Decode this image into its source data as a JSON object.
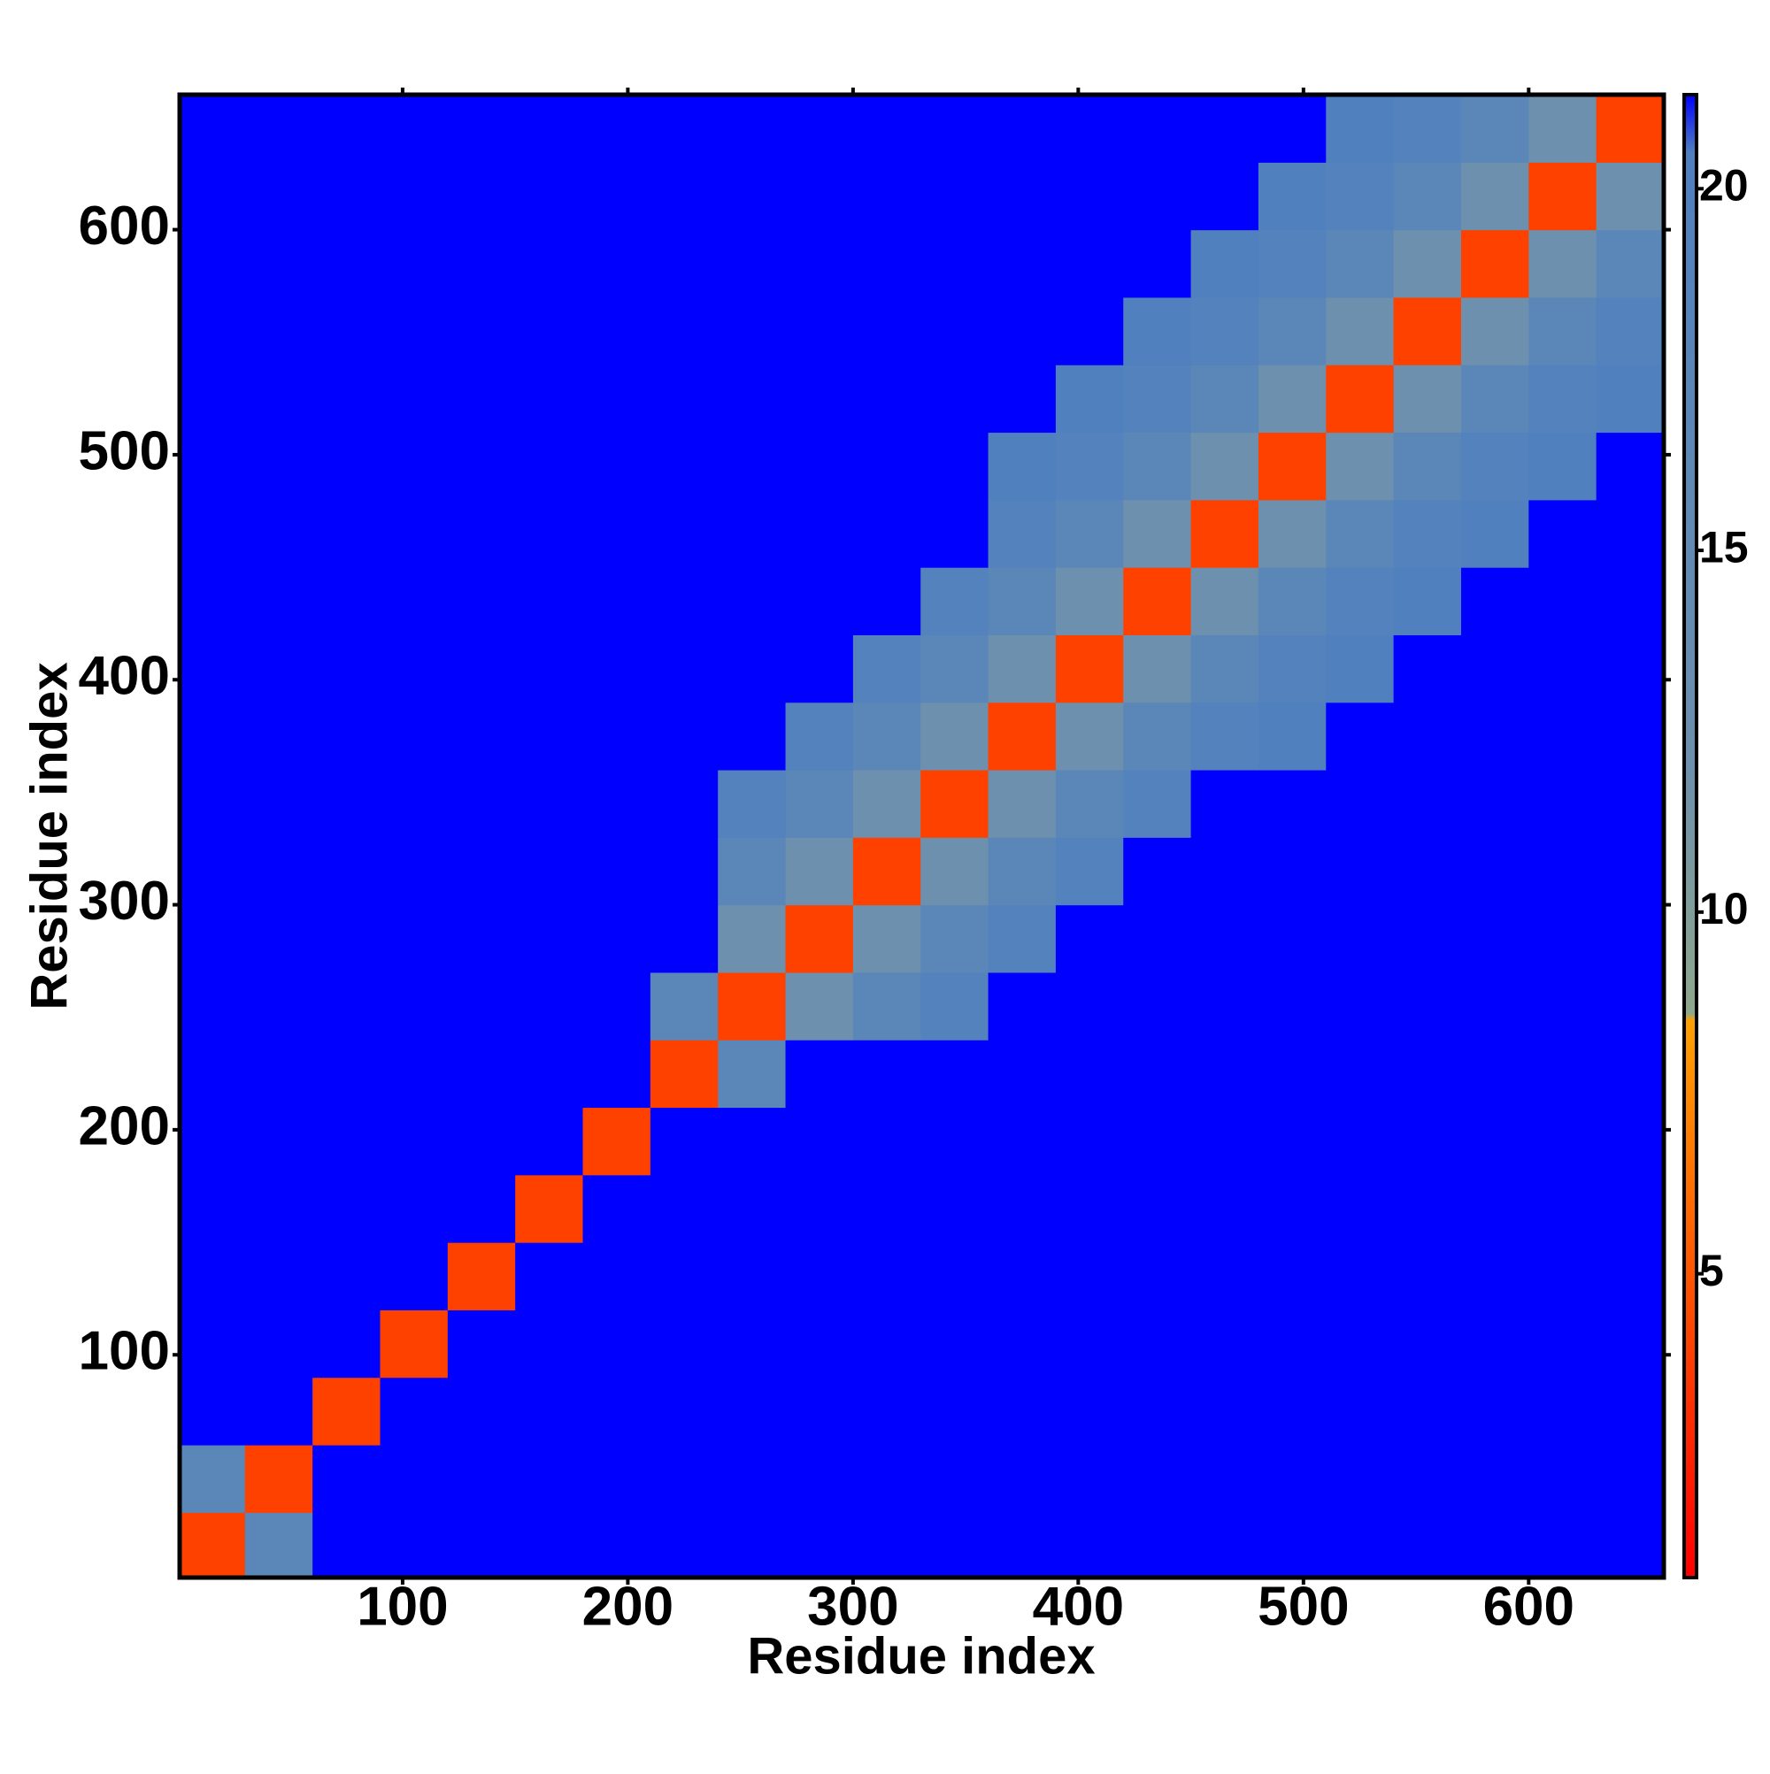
{
  "chart_data": {
    "type": "heatmap",
    "xlabel": "Residue index",
    "ylabel": "Residue index",
    "xlim": [
      1,
      660
    ],
    "ylim": [
      1,
      660
    ],
    "xticks": [
      100,
      200,
      300,
      400,
      500,
      600
    ],
    "yticks": [
      100,
      200,
      300,
      400,
      500,
      600
    ],
    "x_edges": [
      0,
      30,
      60,
      90,
      120,
      150,
      180,
      210,
      240,
      270,
      300,
      330,
      360,
      390,
      420,
      450,
      480,
      510,
      540,
      570,
      600,
      630,
      660
    ],
    "y_edges": [
      0,
      30,
      60,
      90,
      120,
      150,
      180,
      210,
      240,
      270,
      300,
      330,
      360,
      390,
      420,
      450,
      480,
      510,
      540,
      570,
      600,
      630,
      660
    ],
    "z": [
      [
        4,
        17,
        21.3,
        21.3,
        21.3,
        21.3,
        21.3,
        21.3,
        21.3,
        21.3,
        21.3,
        21.3,
        21.3,
        21.3,
        21.3,
        21.3,
        21.3,
        21.3,
        21.3,
        21.3,
        21.3,
        21.3
      ],
      [
        17,
        4,
        21.3,
        21.3,
        21.3,
        21.3,
        21.3,
        21.3,
        21.3,
        21.3,
        21.3,
        21.3,
        21.3,
        21.3,
        21.3,
        21.3,
        21.3,
        21.3,
        21.3,
        21.3,
        21.3,
        21.3
      ],
      [
        21.3,
        21.3,
        4,
        21.3,
        21.3,
        21.3,
        21.3,
        21.3,
        21.3,
        21.3,
        21.3,
        21.3,
        21.3,
        21.3,
        21.3,
        21.3,
        21.3,
        21.3,
        21.3,
        21.3,
        21.3,
        21.3
      ],
      [
        21.3,
        21.3,
        21.3,
        4,
        21.3,
        21.3,
        21.3,
        21.3,
        21.3,
        21.3,
        21.3,
        21.3,
        21.3,
        21.3,
        21.3,
        21.3,
        21.3,
        21.3,
        21.3,
        21.3,
        21.3,
        21.3
      ],
      [
        21.3,
        21.3,
        21.3,
        21.3,
        4,
        21.3,
        21.3,
        21.3,
        21.3,
        21.3,
        21.3,
        21.3,
        21.3,
        21.3,
        21.3,
        21.3,
        21.3,
        21.3,
        21.3,
        21.3,
        21.3,
        21.3
      ],
      [
        21.3,
        21.3,
        21.3,
        21.3,
        21.3,
        4,
        21.3,
        21.3,
        21.3,
        21.3,
        21.3,
        21.3,
        21.3,
        21.3,
        21.3,
        21.3,
        21.3,
        21.3,
        21.3,
        21.3,
        21.3,
        21.3
      ],
      [
        21.3,
        21.3,
        21.3,
        21.3,
        21.3,
        21.3,
        4,
        21.3,
        21.3,
        21.3,
        21.3,
        21.3,
        21.3,
        21.3,
        21.3,
        21.3,
        21.3,
        21.3,
        21.3,
        21.3,
        21.3,
        21.3
      ],
      [
        21.3,
        21.3,
        21.3,
        21.3,
        21.3,
        21.3,
        21.3,
        4,
        17,
        21.3,
        21.3,
        21.3,
        21.3,
        21.3,
        21.3,
        21.3,
        21.3,
        21.3,
        21.3,
        21.3,
        21.3,
        21.3
      ],
      [
        21.3,
        21.3,
        21.3,
        21.3,
        21.3,
        21.3,
        21.3,
        17,
        4,
        12,
        17,
        19,
        21.3,
        21.3,
        21.3,
        21.3,
        21.3,
        21.3,
        21.3,
        21.3,
        21.3,
        21.3
      ],
      [
        21.3,
        21.3,
        21.3,
        21.3,
        21.3,
        21.3,
        21.3,
        21.3,
        12,
        4,
        12,
        17,
        19,
        21.3,
        21.3,
        21.3,
        21.3,
        21.3,
        21.3,
        21.3,
        21.3,
        21.3
      ],
      [
        21.3,
        21.3,
        21.3,
        21.3,
        21.3,
        21.3,
        21.3,
        21.3,
        17,
        12,
        4,
        12,
        17,
        19,
        21.3,
        21.3,
        21.3,
        21.3,
        21.3,
        21.3,
        21.3,
        21.3
      ],
      [
        21.3,
        21.3,
        21.3,
        21.3,
        21.3,
        21.3,
        21.3,
        21.3,
        19,
        17,
        12,
        4,
        12,
        17,
        19,
        21.3,
        21.3,
        21.3,
        21.3,
        21.3,
        21.3,
        21.3
      ],
      [
        21.3,
        21.3,
        21.3,
        21.3,
        21.3,
        21.3,
        21.3,
        21.3,
        21.3,
        19,
        17,
        12,
        4,
        12,
        17,
        19,
        20,
        21.3,
        21.3,
        21.3,
        21.3,
        21.3
      ],
      [
        21.3,
        21.3,
        21.3,
        21.3,
        21.3,
        21.3,
        21.3,
        21.3,
        21.3,
        21.3,
        19,
        17,
        12,
        4,
        12,
        17,
        19,
        20,
        21.3,
        21.3,
        21.3,
        21.3
      ],
      [
        21.3,
        21.3,
        21.3,
        21.3,
        21.3,
        21.3,
        21.3,
        21.3,
        21.3,
        21.3,
        21.3,
        19,
        17,
        12,
        4,
        12,
        17,
        19,
        20,
        21.3,
        21.3,
        21.3
      ],
      [
        21.3,
        21.3,
        21.3,
        21.3,
        21.3,
        21.3,
        21.3,
        21.3,
        21.3,
        21.3,
        21.3,
        21.3,
        19,
        17,
        12,
        4,
        12,
        17,
        19,
        20,
        21.3,
        21.3
      ],
      [
        21.3,
        21.3,
        21.3,
        21.3,
        21.3,
        21.3,
        21.3,
        21.3,
        21.3,
        21.3,
        21.3,
        21.3,
        20,
        19,
        17,
        12,
        4,
        12,
        17,
        19,
        20,
        21.3
      ],
      [
        21.3,
        21.3,
        21.3,
        21.3,
        21.3,
        21.3,
        21.3,
        21.3,
        21.3,
        21.3,
        21.3,
        21.3,
        21.3,
        20,
        19,
        17,
        12,
        4,
        12,
        17,
        19,
        20
      ],
      [
        21.3,
        21.3,
        21.3,
        21.3,
        21.3,
        21.3,
        21.3,
        21.3,
        21.3,
        21.3,
        21.3,
        21.3,
        21.3,
        21.3,
        20,
        19,
        17,
        12,
        4,
        12,
        17,
        19
      ],
      [
        21.3,
        21.3,
        21.3,
        21.3,
        21.3,
        21.3,
        21.3,
        21.3,
        21.3,
        21.3,
        21.3,
        21.3,
        21.3,
        21.3,
        21.3,
        20,
        19,
        17,
        12,
        4,
        12,
        17
      ],
      [
        21.3,
        21.3,
        21.3,
        21.3,
        21.3,
        21.3,
        21.3,
        21.3,
        21.3,
        21.3,
        21.3,
        21.3,
        21.3,
        21.3,
        21.3,
        21.3,
        20,
        19,
        17,
        12,
        4,
        12
      ],
      [
        21.3,
        21.3,
        21.3,
        21.3,
        21.3,
        21.3,
        21.3,
        21.3,
        21.3,
        21.3,
        21.3,
        21.3,
        21.3,
        21.3,
        21.3,
        21.3,
        21.3,
        20,
        19,
        17,
        12,
        4
      ]
    ],
    "zlim": [
      0.8,
      21.3
    ],
    "zticks": [
      5,
      10,
      15,
      20
    ],
    "colorscale": [
      {
        "value": 0.8,
        "color": "#ff0000"
      },
      {
        "value": 5,
        "color": "#ff5500"
      },
      {
        "value": 8.5,
        "color": "#ffa000"
      },
      {
        "value": 8.6,
        "color": "#8ea88c"
      },
      {
        "value": 12,
        "color": "#6c90ad"
      },
      {
        "value": 20.5,
        "color": "#4f7fbf"
      },
      {
        "value": 21.3,
        "color": "#0000ff"
      }
    ]
  }
}
